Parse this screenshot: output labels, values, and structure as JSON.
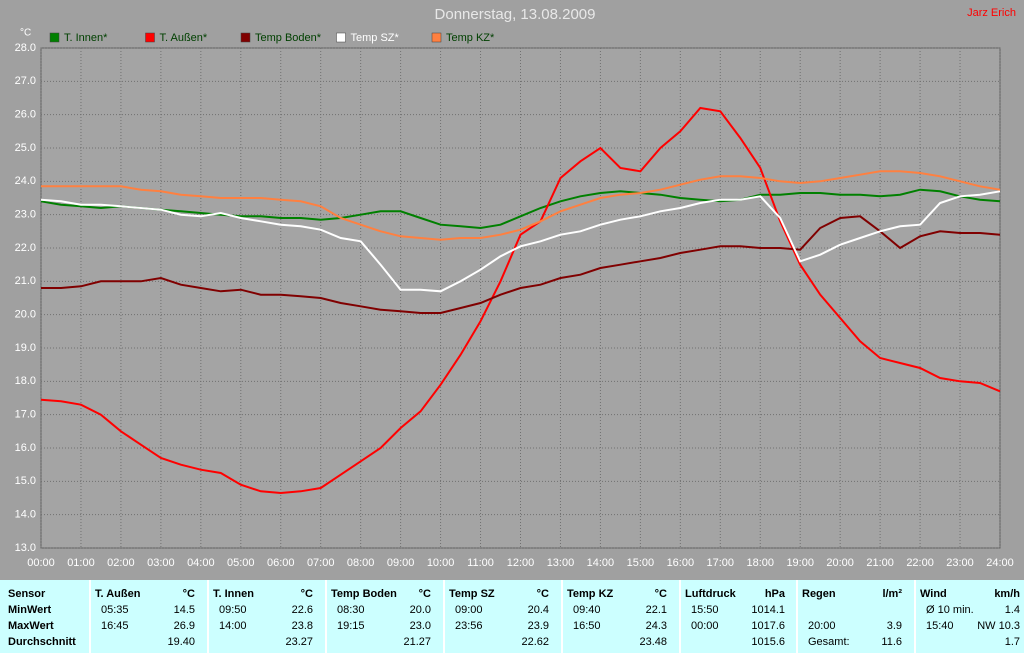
{
  "chart_data": {
    "type": "line",
    "title": "Donnerstag, 13.08.2009",
    "author": "Jarz Erich",
    "y_unit": "°C",
    "grid": true,
    "x": [
      0,
      0.5,
      1,
      1.5,
      2,
      2.5,
      3,
      3.5,
      4,
      4.5,
      5,
      5.5,
      6,
      6.5,
      7,
      7.5,
      8,
      8.5,
      9,
      9.5,
      10,
      10.5,
      11,
      11.5,
      12,
      12.5,
      13,
      13.5,
      14,
      14.5,
      15,
      15.5,
      16,
      16.5,
      17,
      17.5,
      18,
      18.5,
      19,
      19.5,
      20,
      20.5,
      21,
      21.5,
      22,
      22.5,
      23,
      23.5,
      24
    ],
    "xlim": [
      0,
      24
    ],
    "xticks": [
      {
        "value": 0,
        "label": "00:00"
      },
      {
        "value": 1,
        "label": "01:00"
      },
      {
        "value": 2,
        "label": "02:00"
      },
      {
        "value": 3,
        "label": "03:00"
      },
      {
        "value": 4,
        "label": "04:00"
      },
      {
        "value": 5,
        "label": "05:00"
      },
      {
        "value": 6,
        "label": "06:00"
      },
      {
        "value": 7,
        "label": "07:00"
      },
      {
        "value": 8,
        "label": "08:00"
      },
      {
        "value": 9,
        "label": "09:00"
      },
      {
        "value": 10,
        "label": "10:00"
      },
      {
        "value": 11,
        "label": "11:00"
      },
      {
        "value": 12,
        "label": "12:00"
      },
      {
        "value": 13,
        "label": "13:00"
      },
      {
        "value": 14,
        "label": "14:00"
      },
      {
        "value": 15,
        "label": "15:00"
      },
      {
        "value": 16,
        "label": "16:00"
      },
      {
        "value": 17,
        "label": "17:00"
      },
      {
        "value": 18,
        "label": "18:00"
      },
      {
        "value": 19,
        "label": "19:00"
      },
      {
        "value": 20,
        "label": "20:00"
      },
      {
        "value": 21,
        "label": "21:00"
      },
      {
        "value": 22,
        "label": "22:00"
      },
      {
        "value": 23,
        "label": "23:00"
      },
      {
        "value": 24,
        "label": "24:00"
      }
    ],
    "ylim": [
      13,
      28
    ],
    "yticks": [
      {
        "value": 13,
        "label": "13.0"
      },
      {
        "value": 14,
        "label": "14.0"
      },
      {
        "value": 15,
        "label": "15.0"
      },
      {
        "value": 16,
        "label": "16.0"
      },
      {
        "value": 17,
        "label": "17.0"
      },
      {
        "value": 18,
        "label": "18.0"
      },
      {
        "value": 19,
        "label": "19.0"
      },
      {
        "value": 20,
        "label": "20.0"
      },
      {
        "value": 21,
        "label": "21.0"
      },
      {
        "value": 22,
        "label": "22.0"
      },
      {
        "value": 23,
        "label": "23.0"
      },
      {
        "value": 24,
        "label": "24.0"
      },
      {
        "value": 25,
        "label": "25.0"
      },
      {
        "value": 26,
        "label": "26.0"
      },
      {
        "value": 27,
        "label": "27.0"
      },
      {
        "value": 28,
        "label": "28.0"
      }
    ],
    "series": [
      {
        "name": "T. Innen*",
        "color": "#008000",
        "values": [
          23.4,
          23.3,
          23.25,
          23.2,
          23.25,
          23.2,
          23.15,
          23.1,
          23.05,
          23.0,
          22.95,
          22.95,
          22.9,
          22.9,
          22.85,
          22.9,
          23.0,
          23.1,
          23.1,
          22.9,
          22.7,
          22.65,
          22.6,
          22.7,
          22.95,
          23.2,
          23.4,
          23.55,
          23.65,
          23.7,
          23.65,
          23.6,
          23.5,
          23.45,
          23.4,
          23.45,
          23.6,
          23.6,
          23.65,
          23.65,
          23.6,
          23.6,
          23.55,
          23.6,
          23.75,
          23.7,
          23.55,
          23.45,
          23.4
        ]
      },
      {
        "name": "T. Außen*",
        "color": "#ff0000",
        "values": [
          17.45,
          17.4,
          17.3,
          17.0,
          16.5,
          16.1,
          15.7,
          15.5,
          15.35,
          15.25,
          14.9,
          14.7,
          14.65,
          14.7,
          14.8,
          15.2,
          15.6,
          16.0,
          16.6,
          17.1,
          17.9,
          18.8,
          19.8,
          21.0,
          22.4,
          22.8,
          24.1,
          24.6,
          25.0,
          24.4,
          24.3,
          25.0,
          25.5,
          26.2,
          26.1,
          25.3,
          24.4,
          22.8,
          21.5,
          20.6,
          19.9,
          19.2,
          18.7,
          18.55,
          18.4,
          18.1,
          18.0,
          17.95,
          17.7
        ]
      },
      {
        "name": "Temp Boden*",
        "color": "#800000",
        "values": [
          20.8,
          20.8,
          20.85,
          21.0,
          21.0,
          21.0,
          21.1,
          20.9,
          20.8,
          20.7,
          20.75,
          20.6,
          20.6,
          20.55,
          20.5,
          20.35,
          20.25,
          20.15,
          20.1,
          20.05,
          20.05,
          20.2,
          20.35,
          20.6,
          20.8,
          20.9,
          21.1,
          21.2,
          21.4,
          21.5,
          21.6,
          21.7,
          21.85,
          21.95,
          22.05,
          22.05,
          22.0,
          22.0,
          21.95,
          22.6,
          22.9,
          22.95,
          22.5,
          22.0,
          22.35,
          22.5,
          22.45,
          22.45,
          22.4
        ]
      },
      {
        "name": "Temp SZ*",
        "color": "#ffffff",
        "values": [
          23.45,
          23.4,
          23.3,
          23.3,
          23.25,
          23.2,
          23.15,
          23.0,
          22.95,
          23.05,
          22.9,
          22.8,
          22.7,
          22.65,
          22.55,
          22.3,
          22.2,
          21.5,
          20.75,
          20.75,
          20.7,
          21.0,
          21.35,
          21.75,
          22.05,
          22.2,
          22.4,
          22.5,
          22.7,
          22.85,
          22.95,
          23.1,
          23.2,
          23.35,
          23.45,
          23.45,
          23.55,
          22.9,
          21.6,
          21.8,
          22.1,
          22.3,
          22.5,
          22.65,
          22.7,
          23.35,
          23.55,
          23.6,
          23.7
        ]
      },
      {
        "name": "Temp KZ*",
        "color": "#ff8040",
        "values": [
          23.85,
          23.85,
          23.85,
          23.85,
          23.85,
          23.75,
          23.7,
          23.6,
          23.55,
          23.5,
          23.5,
          23.5,
          23.45,
          23.4,
          23.25,
          22.9,
          22.7,
          22.5,
          22.35,
          22.3,
          22.25,
          22.3,
          22.3,
          22.4,
          22.55,
          22.8,
          23.1,
          23.3,
          23.5,
          23.6,
          23.65,
          23.75,
          23.9,
          24.05,
          24.15,
          24.15,
          24.1,
          24.0,
          23.95,
          24.0,
          24.1,
          24.2,
          24.3,
          24.3,
          24.25,
          24.15,
          24.0,
          23.85,
          23.75
        ]
      }
    ]
  },
  "table": {
    "sensor": {
      "name": "Sensor",
      "rows": [
        "MinWert",
        "MaxWert",
        "Durchschnitt"
      ]
    },
    "groups": [
      {
        "name": "T. Außen",
        "unit": "°C",
        "rows": [
          {
            "time": "05:35",
            "value": "14.5"
          },
          {
            "time": "16:45",
            "value": "26.9"
          },
          {
            "value": "19.40"
          }
        ]
      },
      {
        "name": "T. Innen",
        "unit": "°C",
        "rows": [
          {
            "time": "09:50",
            "value": "22.6"
          },
          {
            "time": "14:00",
            "value": "23.8"
          },
          {
            "value": "23.27"
          }
        ]
      },
      {
        "name": "Temp Boden",
        "unit": "°C",
        "rows": [
          {
            "time": "08:30",
            "value": "20.0"
          },
          {
            "time": "19:15",
            "value": "23.0"
          },
          {
            "value": "21.27"
          }
        ]
      },
      {
        "name": "Temp SZ",
        "unit": "°C",
        "rows": [
          {
            "time": "09:00",
            "value": "20.4"
          },
          {
            "time": "23:56",
            "value": "23.9"
          },
          {
            "value": "22.62"
          }
        ]
      },
      {
        "name": "Temp KZ",
        "unit": "°C",
        "rows": [
          {
            "time": "09:40",
            "value": "22.1"
          },
          {
            "time": "16:50",
            "value": "24.3"
          },
          {
            "value": "23.48"
          }
        ]
      },
      {
        "name": "Luftdruck",
        "unit": "hPa",
        "rows": [
          {
            "time": "15:50",
            "value": "1014.1"
          },
          {
            "time": "00:00",
            "value": "1017.6"
          },
          {
            "value": "1015.6"
          }
        ]
      },
      {
        "name": "Regen",
        "unit": "l/m²",
        "rows": [
          {},
          {
            "time": "20:00",
            "value": "3.9"
          },
          {
            "time": "Gesamt:",
            "value": "11.6"
          }
        ]
      },
      {
        "name": "Wind",
        "unit": "km/h",
        "rows": [
          {
            "time": "Ø 10 min.",
            "value": "1.4"
          },
          {
            "time": "15:40",
            "value": "NW 10.3"
          },
          {
            "value": "1.7"
          }
        ]
      }
    ]
  }
}
